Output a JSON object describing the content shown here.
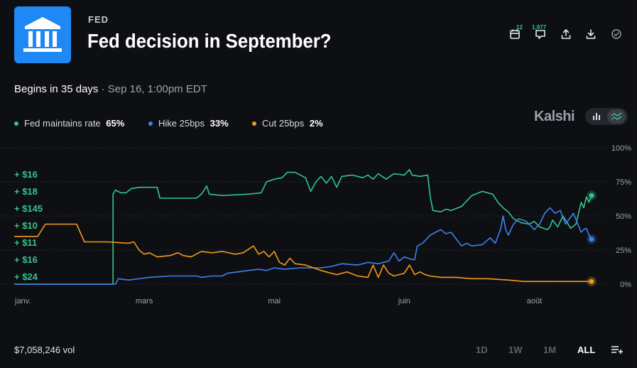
{
  "header": {
    "category": "FED",
    "title": "Fed decision in September?",
    "logo_icon": "bank-building-icon",
    "toolbar": [
      {
        "name": "calendar-icon",
        "badge": "12"
      },
      {
        "name": "comment-icon",
        "badge": "1,977"
      },
      {
        "name": "share-icon"
      },
      {
        "name": "download-icon"
      },
      {
        "name": "check-circle-icon"
      }
    ]
  },
  "begins": {
    "main": "Begins in 35 days",
    "sep": " · ",
    "sub": "Sep 16, 1:00pm EDT"
  },
  "legend": [
    {
      "label": "Fed maintains rate",
      "value": "65%",
      "color": "#33c58a"
    },
    {
      "label": "Hike 25bps",
      "value": "33%",
      "color": "#3d82f2"
    },
    {
      "label": "Cut 25bps",
      "value": "2%",
      "color": "#f29a1d"
    }
  ],
  "brand": "Kalshi",
  "view_toggle": [
    {
      "name": "bar-chart-icon",
      "active": false
    },
    {
      "name": "line-chart-icon",
      "active": true
    }
  ],
  "chart_data": {
    "type": "line",
    "x_ticks": [
      "janv.",
      "mars",
      "mai",
      "juin",
      "août"
    ],
    "y_ticks": [
      "100%",
      "75%",
      "50%",
      "25%",
      "0%"
    ],
    "ylim": [
      0,
      100
    ],
    "xlim": [
      0,
      222
    ],
    "x_tick_positions": [
      0,
      50,
      100,
      150,
      200
    ],
    "trade_labels": [
      "+ $16",
      "+ $18",
      "+ $145",
      "+ $10",
      "+ $11",
      "+ $16",
      "+ $24"
    ],
    "series": [
      {
        "name": "Fed maintains rate",
        "color": "#33c58a",
        "points": [
          [
            0,
            0
          ],
          [
            38,
            0
          ],
          [
            38,
            66
          ],
          [
            39,
            69
          ],
          [
            41,
            67
          ],
          [
            43,
            67
          ],
          [
            45,
            70
          ],
          [
            48,
            71
          ],
          [
            55,
            71
          ],
          [
            56,
            63
          ],
          [
            70,
            63
          ],
          [
            72,
            66
          ],
          [
            74,
            72
          ],
          [
            75,
            66
          ],
          [
            80,
            65
          ],
          [
            90,
            66
          ],
          [
            95,
            67
          ],
          [
            97,
            75
          ],
          [
            100,
            77
          ],
          [
            103,
            78
          ],
          [
            105,
            82
          ],
          [
            108,
            82
          ],
          [
            112,
            78
          ],
          [
            114,
            68
          ],
          [
            116,
            75
          ],
          [
            118,
            79
          ],
          [
            120,
            74
          ],
          [
            122,
            79
          ],
          [
            124,
            71
          ],
          [
            126,
            79
          ],
          [
            130,
            80
          ],
          [
            134,
            78
          ],
          [
            136,
            80
          ],
          [
            138,
            77
          ],
          [
            140,
            81
          ],
          [
            143,
            77
          ],
          [
            146,
            81
          ],
          [
            150,
            80
          ],
          [
            152,
            84
          ],
          [
            153,
            80
          ],
          [
            156,
            79
          ],
          [
            159,
            80
          ],
          [
            160,
            64
          ],
          [
            161,
            54
          ],
          [
            164,
            53
          ],
          [
            166,
            55
          ],
          [
            168,
            54
          ],
          [
            172,
            57
          ],
          [
            176,
            65
          ],
          [
            180,
            68
          ],
          [
            184,
            66
          ],
          [
            186,
            60
          ],
          [
            188,
            56
          ],
          [
            190,
            53
          ],
          [
            192,
            48
          ],
          [
            195,
            45
          ],
          [
            198,
            44
          ],
          [
            200,
            46
          ],
          [
            202,
            42
          ],
          [
            205,
            40
          ],
          [
            206,
            42
          ],
          [
            207,
            47
          ],
          [
            209,
            42
          ],
          [
            211,
            50
          ],
          [
            214,
            41
          ],
          [
            216,
            44
          ],
          [
            218,
            60
          ],
          [
            219,
            56
          ],
          [
            220,
            64
          ],
          [
            221,
            60
          ],
          [
            222,
            65
          ]
        ]
      },
      {
        "name": "Hike 25bps",
        "color": "#3d82f2",
        "points": [
          [
            0,
            0
          ],
          [
            39,
            0
          ],
          [
            40,
            4
          ],
          [
            44,
            3
          ],
          [
            48,
            4
          ],
          [
            52,
            5
          ],
          [
            60,
            6
          ],
          [
            70,
            6
          ],
          [
            72,
            5
          ],
          [
            76,
            6
          ],
          [
            80,
            6
          ],
          [
            82,
            8
          ],
          [
            86,
            9
          ],
          [
            90,
            10
          ],
          [
            94,
            11
          ],
          [
            97,
            10
          ],
          [
            100,
            12
          ],
          [
            104,
            11
          ],
          [
            110,
            12
          ],
          [
            118,
            12
          ],
          [
            122,
            13
          ],
          [
            126,
            15
          ],
          [
            132,
            14
          ],
          [
            136,
            16
          ],
          [
            140,
            15
          ],
          [
            144,
            17
          ],
          [
            146,
            23
          ],
          [
            148,
            17
          ],
          [
            150,
            20
          ],
          [
            153,
            18
          ],
          [
            154,
            18
          ],
          [
            155,
            28
          ],
          [
            157,
            30
          ],
          [
            160,
            36
          ],
          [
            162,
            38
          ],
          [
            164,
            40
          ],
          [
            166,
            37
          ],
          [
            168,
            38
          ],
          [
            170,
            33
          ],
          [
            172,
            28
          ],
          [
            174,
            30
          ],
          [
            176,
            28
          ],
          [
            180,
            29
          ],
          [
            183,
            34
          ],
          [
            185,
            30
          ],
          [
            187,
            40
          ],
          [
            188,
            50
          ],
          [
            189,
            40
          ],
          [
            190,
            36
          ],
          [
            192,
            44
          ],
          [
            194,
            48
          ],
          [
            197,
            46
          ],
          [
            200,
            40
          ],
          [
            202,
            44
          ],
          [
            204,
            52
          ],
          [
            206,
            56
          ],
          [
            208,
            52
          ],
          [
            210,
            54
          ],
          [
            212,
            44
          ],
          [
            215,
            52
          ],
          [
            218,
            38
          ],
          [
            219,
            40
          ],
          [
            220,
            41
          ],
          [
            221,
            36
          ],
          [
            222,
            33
          ]
        ]
      },
      {
        "name": "Cut 25bps",
        "color": "#f29a1d",
        "points": [
          [
            0,
            35
          ],
          [
            9,
            35
          ],
          [
            12,
            44
          ],
          [
            24,
            44
          ],
          [
            27,
            31
          ],
          [
            36,
            31
          ],
          [
            44,
            30
          ],
          [
            46,
            31
          ],
          [
            48,
            25
          ],
          [
            50,
            22
          ],
          [
            52,
            23
          ],
          [
            55,
            20
          ],
          [
            60,
            21
          ],
          [
            63,
            23
          ],
          [
            65,
            21
          ],
          [
            68,
            20
          ],
          [
            72,
            24
          ],
          [
            76,
            23
          ],
          [
            80,
            24
          ],
          [
            85,
            22
          ],
          [
            88,
            23
          ],
          [
            92,
            28
          ],
          [
            94,
            22
          ],
          [
            96,
            24
          ],
          [
            98,
            20
          ],
          [
            100,
            24
          ],
          [
            102,
            16
          ],
          [
            104,
            14
          ],
          [
            106,
            19
          ],
          [
            108,
            15
          ],
          [
            112,
            14
          ],
          [
            118,
            10
          ],
          [
            124,
            7
          ],
          [
            128,
            9
          ],
          [
            132,
            6
          ],
          [
            136,
            5
          ],
          [
            138,
            14
          ],
          [
            140,
            5
          ],
          [
            142,
            14
          ],
          [
            144,
            8
          ],
          [
            146,
            6
          ],
          [
            150,
            8
          ],
          [
            152,
            14
          ],
          [
            154,
            7
          ],
          [
            156,
            9
          ],
          [
            158,
            7
          ],
          [
            160,
            6
          ],
          [
            164,
            5
          ],
          [
            170,
            5
          ],
          [
            176,
            4
          ],
          [
            182,
            4
          ],
          [
            190,
            3
          ],
          [
            196,
            2
          ],
          [
            202,
            2
          ],
          [
            210,
            2
          ],
          [
            216,
            2
          ],
          [
            222,
            2
          ]
        ]
      }
    ]
  },
  "footer": {
    "volume": "$7,058,246 vol",
    "ranges": [
      {
        "label": "1D",
        "active": false
      },
      {
        "label": "1W",
        "active": false
      },
      {
        "label": "1M",
        "active": false
      },
      {
        "label": "ALL",
        "active": true
      }
    ],
    "menu_icon": "list-add-icon"
  }
}
